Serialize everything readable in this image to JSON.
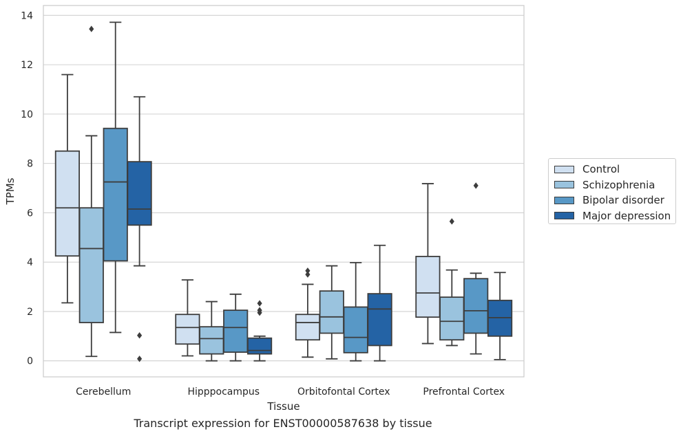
{
  "chart_data": {
    "type": "box",
    "xlabel": "Tissue",
    "ylabel": "TPMs",
    "ylim": [
      -0.65,
      14.4
    ],
    "yticks": [
      0,
      2,
      4,
      6,
      8,
      10,
      12,
      14
    ],
    "grid": "horizontal",
    "legend_position": "right",
    "categories": [
      "Cerebellum",
      "Hipppocampus",
      "Orbitofontal Cortex",
      "Prefrontal Cortex"
    ],
    "series": [
      {
        "name": "Control",
        "color": "#d0e0f1",
        "boxes": [
          {
            "whislo": 2.35,
            "q1": 4.25,
            "med": 6.2,
            "q3": 8.5,
            "whishi": 11.6,
            "fliers": []
          },
          {
            "whislo": 0.2,
            "q1": 0.68,
            "med": 1.35,
            "q3": 1.88,
            "whishi": 3.28,
            "fliers": []
          },
          {
            "whislo": 0.15,
            "q1": 0.85,
            "med": 1.55,
            "q3": 1.88,
            "whishi": 3.1,
            "fliers": [
              3.5,
              3.65
            ]
          },
          {
            "whislo": 0.7,
            "q1": 1.77,
            "med": 2.75,
            "q3": 4.23,
            "whishi": 7.18,
            "fliers": []
          }
        ]
      },
      {
        "name": "Schizophrenia",
        "color": "#9ac3de",
        "boxes": [
          {
            "whislo": 0.18,
            "q1": 1.55,
            "med": 4.55,
            "q3": 6.2,
            "whishi": 9.12,
            "fliers": [
              13.45
            ]
          },
          {
            "whislo": 0.0,
            "q1": 0.28,
            "med": 0.9,
            "q3": 1.38,
            "whishi": 2.4,
            "fliers": []
          },
          {
            "whislo": 0.08,
            "q1": 1.12,
            "med": 1.78,
            "q3": 2.83,
            "whishi": 3.85,
            "fliers": []
          },
          {
            "whislo": 0.62,
            "q1": 0.85,
            "med": 1.6,
            "q3": 2.58,
            "whishi": 3.68,
            "fliers": [
              5.65
            ]
          }
        ]
      },
      {
        "name": "Bipolar disorder",
        "color": "#5898c6",
        "boxes": [
          {
            "whislo": 1.15,
            "q1": 4.05,
            "med": 7.25,
            "q3": 9.42,
            "whishi": 13.72,
            "fliers": []
          },
          {
            "whislo": 0.0,
            "q1": 0.35,
            "med": 1.35,
            "q3": 2.05,
            "whishi": 2.7,
            "fliers": []
          },
          {
            "whislo": 0.0,
            "q1": 0.33,
            "med": 0.95,
            "q3": 2.18,
            "whishi": 3.98,
            "fliers": []
          },
          {
            "whislo": 0.28,
            "q1": 1.12,
            "med": 2.03,
            "q3": 3.33,
            "whishi": 3.55,
            "fliers": [
              7.1
            ]
          }
        ]
      },
      {
        "name": "Major depression",
        "color": "#2463a5",
        "boxes": [
          {
            "whislo": 3.85,
            "q1": 5.5,
            "med": 6.15,
            "q3": 8.07,
            "whishi": 10.7,
            "fliers": [
              1.03,
              0.08
            ]
          },
          {
            "whislo": 0.0,
            "q1": 0.28,
            "med": 0.42,
            "q3": 0.92,
            "whishi": 1.0,
            "fliers": [
              1.95,
              2.05,
              2.33
            ]
          },
          {
            "whislo": 0.0,
            "q1": 0.62,
            "med": 2.1,
            "q3": 2.72,
            "whishi": 4.68,
            "fliers": []
          },
          {
            "whislo": 0.05,
            "q1": 1.0,
            "med": 1.75,
            "q3": 2.45,
            "whishi": 3.58,
            "fliers": []
          }
        ]
      }
    ],
    "caption": "Transcript expression for ENST00000587638 by tissue"
  }
}
